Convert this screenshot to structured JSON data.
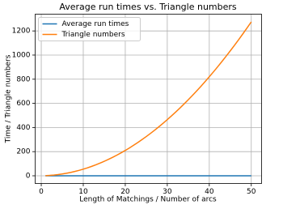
{
  "chart_data": {
    "type": "line",
    "title": "Average run times vs. Triangle numbers",
    "x_label": "Length of Matchings / Number of arcs",
    "y_label": "Time / Triangle numbers",
    "x": [
      1,
      2,
      3,
      4,
      5,
      6,
      7,
      8,
      9,
      10,
      11,
      12,
      13,
      14,
      15,
      16,
      17,
      18,
      19,
      20,
      21,
      22,
      23,
      24,
      25,
      26,
      27,
      28,
      29,
      30,
      31,
      32,
      33,
      34,
      35,
      36,
      37,
      38,
      39,
      40,
      41,
      42,
      43,
      44,
      45,
      46,
      47,
      48,
      49,
      50
    ],
    "series": [
      {
        "name": "Average run times",
        "color": "#1f77b4",
        "values": [
          0,
          0,
          0,
          0,
          0,
          0,
          0,
          0,
          0,
          0,
          0,
          0,
          0,
          0,
          0,
          0,
          0,
          0,
          0,
          0,
          0,
          0,
          0,
          0,
          0,
          0,
          0,
          0,
          0,
          0,
          0,
          0,
          0,
          0,
          0,
          0,
          0,
          0,
          0,
          0,
          0,
          0,
          0,
          0,
          0,
          0,
          0,
          0,
          0,
          0
        ]
      },
      {
        "name": "Triangle numbers",
        "color": "#ff7f0e",
        "values": [
          1,
          3,
          6,
          10,
          15,
          21,
          28,
          36,
          45,
          55,
          66,
          78,
          91,
          105,
          120,
          136,
          153,
          171,
          190,
          210,
          231,
          253,
          276,
          300,
          325,
          351,
          378,
          406,
          435,
          465,
          496,
          528,
          561,
          595,
          630,
          666,
          703,
          741,
          780,
          820,
          861,
          903,
          946,
          990,
          1035,
          1081,
          1128,
          1176,
          1225,
          1275
        ]
      }
    ],
    "xlim": [
      -1.45,
      52.45
    ],
    "xticks": [
      0,
      10,
      20,
      30,
      40,
      50
    ],
    "ylim": [
      -63.75,
      1338.75
    ],
    "yticks": [
      0,
      200,
      400,
      600,
      800,
      1000,
      1200
    ],
    "grid": true,
    "legend": "upper-left"
  }
}
